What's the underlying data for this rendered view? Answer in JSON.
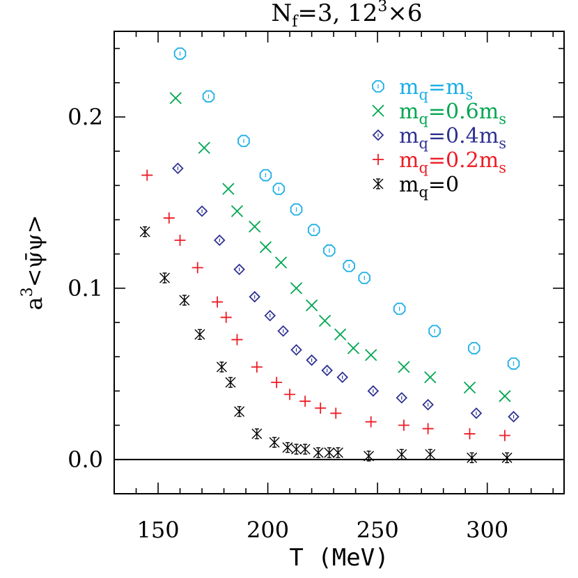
{
  "chart_data": {
    "type": "scatter",
    "title": "N_f=3,  12^3×6",
    "title_parts": {
      "main": "N",
      "sub": "f",
      "mid": "=3,  12",
      "sup": "3",
      "end": "×6"
    },
    "xlabel": "T (MeV)",
    "ylabel_parts": {
      "pre": "a",
      "sup": "3",
      "expr": "<ψ̄ψ>"
    },
    "xlim": [
      130,
      335
    ],
    "ylim": [
      -0.02,
      0.25
    ],
    "xticks": [
      150,
      200,
      250,
      300
    ],
    "yticks": [
      0.0,
      0.1,
      0.2
    ],
    "xtick_labels": [
      "150",
      "200",
      "250",
      "300"
    ],
    "ytick_labels": [
      "0.0",
      "0.1",
      "0.2"
    ],
    "zero_line": true,
    "legend_position": "top-right",
    "series": [
      {
        "name": "m_q=m_s",
        "legend_parts": {
          "a": "m",
          "asub": "q",
          "b": "=m",
          "bsub": "s"
        },
        "marker": "octagon",
        "color": "#1aaee6",
        "x": [
          160,
          173,
          189,
          199,
          205,
          213,
          221,
          228,
          237,
          244,
          260,
          276,
          294,
          312
        ],
        "y": [
          0.237,
          0.212,
          0.186,
          0.166,
          0.158,
          0.146,
          0.134,
          0.122,
          0.113,
          0.106,
          0.088,
          0.075,
          0.065,
          0.056
        ]
      },
      {
        "name": "m_q=0.6m_s",
        "legend_parts": {
          "a": "m",
          "asub": "q",
          "b": "=0.6m",
          "bsub": "s"
        },
        "marker": "x",
        "color": "#00a651",
        "x": [
          158,
          171,
          182,
          186,
          194,
          199,
          206,
          213,
          220,
          226,
          233,
          239,
          247,
          262,
          274,
          292,
          308
        ],
        "y": [
          0.211,
          0.182,
          0.158,
          0.145,
          0.136,
          0.124,
          0.115,
          0.1,
          0.09,
          0.081,
          0.073,
          0.065,
          0.061,
          0.054,
          0.048,
          0.042,
          0.037
        ]
      },
      {
        "name": "m_q=0.4m_s",
        "legend_parts": {
          "a": "m",
          "asub": "q",
          "b": "=0.4m",
          "bsub": "s"
        },
        "marker": "diamond",
        "color": "#2e3192",
        "x": [
          159,
          170,
          178,
          187,
          194,
          201,
          207,
          213,
          220,
          227,
          234,
          248,
          261,
          273,
          295,
          312
        ],
        "y": [
          0.17,
          0.145,
          0.128,
          0.111,
          0.095,
          0.084,
          0.075,
          0.064,
          0.058,
          0.052,
          0.048,
          0.04,
          0.036,
          0.032,
          0.027,
          0.025
        ]
      },
      {
        "name": "m_q=0.2m_s",
        "legend_parts": {
          "a": "m",
          "asub": "q",
          "b": "=0.2m",
          "bsub": "s"
        },
        "marker": "plus",
        "color": "#ed1c24",
        "x": [
          145,
          155,
          160,
          168,
          177,
          181,
          186,
          195,
          204,
          210,
          217,
          224,
          231,
          247,
          262,
          273,
          292,
          308
        ],
        "y": [
          0.166,
          0.141,
          0.128,
          0.112,
          0.092,
          0.083,
          0.07,
          0.054,
          0.045,
          0.038,
          0.034,
          0.03,
          0.027,
          0.022,
          0.02,
          0.018,
          0.015,
          0.014
        ]
      },
      {
        "name": "m_q=0",
        "legend_parts": {
          "a": "m",
          "asub": "q",
          "b": "=0",
          "bsub": ""
        },
        "marker": "asterisk",
        "color": "#000000",
        "x": [
          144,
          153,
          162,
          169,
          179,
          183,
          187,
          195,
          203,
          209,
          213,
          217,
          223,
          228,
          232,
          246,
          261,
          274,
          293,
          309
        ],
        "y": [
          0.133,
          0.106,
          0.093,
          0.073,
          0.054,
          0.045,
          0.028,
          0.015,
          0.01,
          0.007,
          0.006,
          0.006,
          0.004,
          0.004,
          0.004,
          0.002,
          0.003,
          0.003,
          0.001,
          0.001
        ]
      }
    ]
  }
}
